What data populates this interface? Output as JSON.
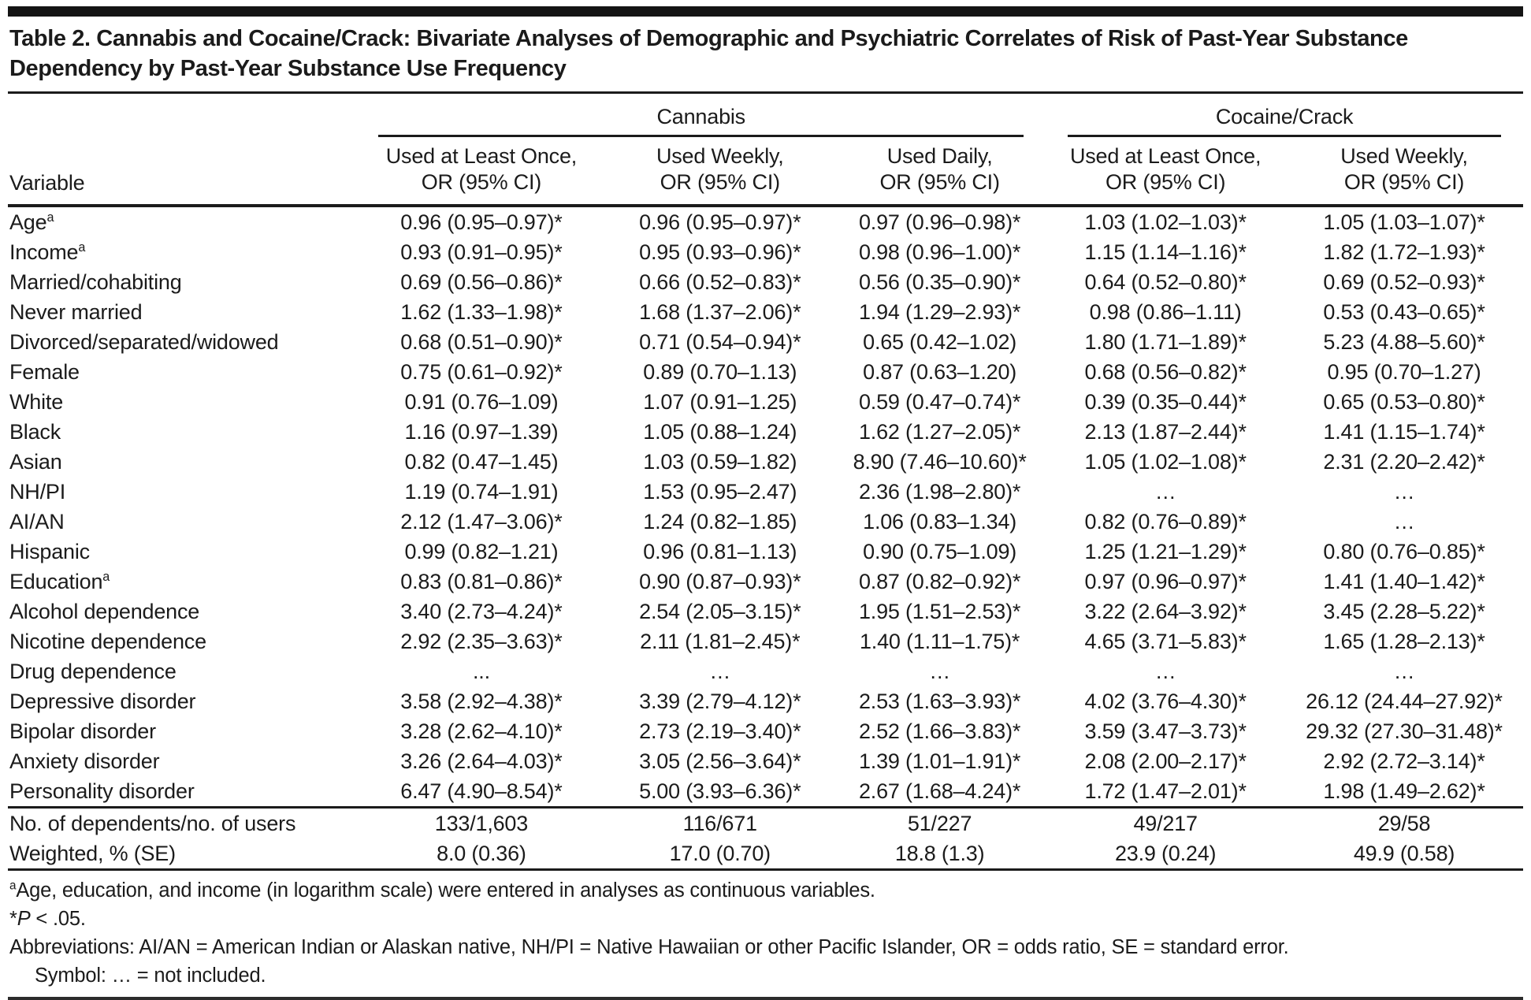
{
  "title": "Table 2. Cannabis and Cocaine/Crack: Bivariate Analyses of Demographic and Psychiatric Correlates of Risk of Past-Year Substance Dependency by Past-Year Substance Use Frequency",
  "table": {
    "group_headers": [
      {
        "label": "Cannabis",
        "span": 3
      },
      {
        "label": "Cocaine/Crack",
        "span": 2
      }
    ],
    "columns": [
      {
        "label": "Variable"
      },
      {
        "line1": "Used at Least Once,",
        "line2": "OR (95% CI)"
      },
      {
        "line1": "Used Weekly,",
        "line2": "OR (95% CI)"
      },
      {
        "line1": "Used Daily,",
        "line2": "OR (95% CI)"
      },
      {
        "line1": "Used at Least Once,",
        "line2": "OR (95% CI)"
      },
      {
        "line1": "Used Weekly,",
        "line2": "OR (95% CI)"
      }
    ],
    "rows": [
      {
        "variable": "Age",
        "sup": "a",
        "values": [
          "0.96 (0.95–0.97)*",
          "0.96 (0.95–0.97)*",
          "0.97 (0.96–0.98)*",
          "1.03 (1.02–1.03)*",
          "1.05 (1.03–1.07)*"
        ]
      },
      {
        "variable": "Income",
        "sup": "a",
        "values": [
          "0.93 (0.91–0.95)*",
          "0.95 (0.93–0.96)*",
          "0.98 (0.96–1.00)*",
          "1.15 (1.14–1.16)*",
          "1.82 (1.72–1.93)*"
        ]
      },
      {
        "variable": "Married/cohabiting",
        "values": [
          "0.69 (0.56–0.86)*",
          "0.66 (0.52–0.83)*",
          "0.56 (0.35–0.90)*",
          "0.64 (0.52–0.80)*",
          "0.69 (0.52–0.93)*"
        ]
      },
      {
        "variable": "Never married",
        "values": [
          "1.62 (1.33–1.98)*",
          "1.68 (1.37–2.06)*",
          "1.94 (1.29–2.93)*",
          "0.98 (0.86–1.11)",
          "0.53 (0.43–0.65)*"
        ]
      },
      {
        "variable": "Divorced/separated/widowed",
        "values": [
          "0.68 (0.51–0.90)*",
          "0.71 (0.54–0.94)*",
          "0.65 (0.42–1.02)",
          "1.80 (1.71–1.89)*",
          "5.23 (4.88–5.60)*"
        ]
      },
      {
        "variable": "Female",
        "values": [
          "0.75 (0.61–0.92)*",
          "0.89 (0.70–1.13)",
          "0.87 (0.63–1.20)",
          "0.68 (0.56–0.82)*",
          "0.95 (0.70–1.27)"
        ]
      },
      {
        "variable": "White",
        "values": [
          "0.91 (0.76–1.09)",
          "1.07 (0.91–1.25)",
          "0.59 (0.47–0.74)*",
          "0.39 (0.35–0.44)*",
          "0.65 (0.53–0.80)*"
        ]
      },
      {
        "variable": "Black",
        "values": [
          "1.16 (0.97–1.39)",
          "1.05 (0.88–1.24)",
          "1.62 (1.27–2.05)*",
          "2.13 (1.87–2.44)*",
          "1.41 (1.15–1.74)*"
        ]
      },
      {
        "variable": "Asian",
        "values": [
          "0.82 (0.47–1.45)",
          "1.03 (0.59–1.82)",
          "8.90 (7.46–10.60)*",
          "1.05 (1.02–1.08)*",
          "2.31 (2.20–2.42)*"
        ]
      },
      {
        "variable": "NH/PI",
        "values": [
          "1.19 (0.74–1.91)",
          "1.53 (0.95–2.47)",
          "2.36 (1.98–2.80)*",
          "…",
          "…"
        ]
      },
      {
        "variable": "AI/AN",
        "values": [
          "2.12 (1.47–3.06)*",
          "1.24 (0.82–1.85)",
          "1.06 (0.83–1.34)",
          "0.82 (0.76–0.89)*",
          "…"
        ]
      },
      {
        "variable": "Hispanic",
        "values": [
          "0.99 (0.82–1.21)",
          "0.96 (0.81–1.13)",
          "0.90 (0.75–1.09)",
          "1.25 (1.21–1.29)*",
          "0.80 (0.76–0.85)*"
        ]
      },
      {
        "variable": "Education",
        "sup": "a",
        "values": [
          "0.83 (0.81–0.86)*",
          "0.90 (0.87–0.93)*",
          "0.87 (0.82–0.92)*",
          "0.97 (0.96–0.97)*",
          "1.41 (1.40–1.42)*"
        ]
      },
      {
        "variable": "Alcohol dependence",
        "values": [
          "3.40 (2.73–4.24)*",
          "2.54 (2.05–3.15)*",
          "1.95 (1.51–2.53)*",
          "3.22 (2.64–3.92)*",
          "3.45 (2.28–5.22)*"
        ]
      },
      {
        "variable": "Nicotine dependence",
        "values": [
          "2.92 (2.35–3.63)*",
          "2.11 (1.81–2.45)*",
          "1.40 (1.11–1.75)*",
          "4.65 (3.71–5.83)*",
          "1.65 (1.28–2.13)*"
        ]
      },
      {
        "variable": "Drug dependence",
        "values": [
          "...",
          "…",
          "…",
          "…",
          "…"
        ]
      },
      {
        "variable": "Depressive disorder",
        "values": [
          "3.58 (2.92–4.38)*",
          "3.39 (2.79–4.12)*",
          "2.53 (1.63–3.93)*",
          "4.02 (3.76–4.30)*",
          "26.12 (24.44–27.92)*"
        ]
      },
      {
        "variable": "Bipolar disorder",
        "values": [
          "3.28 (2.62–4.10)*",
          "2.73 (2.19–3.40)*",
          "2.52 (1.66–3.83)*",
          "3.59 (3.47–3.73)*",
          "29.32 (27.30–31.48)*"
        ]
      },
      {
        "variable": "Anxiety disorder",
        "values": [
          "3.26 (2.64–4.03)*",
          "3.05 (2.56–3.64)*",
          "1.39 (1.01–1.91)*",
          "2.08 (2.00–2.17)*",
          "2.92 (2.72–3.14)*"
        ]
      },
      {
        "variable": "Personality disorder",
        "values": [
          "6.47 (4.90–8.54)*",
          "5.00 (3.93–6.36)*",
          "2.67 (1.68–4.24)*",
          "1.72 (1.47–2.01)*",
          "1.98 (1.49–2.62)*"
        ]
      }
    ],
    "summary_rows": [
      {
        "variable": "No. of dependents/no. of users",
        "values": [
          "133/1,603",
          "116/671",
          "51/227",
          "49/217",
          "29/58"
        ]
      },
      {
        "variable": "Weighted, % (SE)",
        "values": [
          "8.0 (0.36)",
          "17.0 (0.70)",
          "18.8 (1.3)",
          "23.9 (0.24)",
          "49.9 (0.58)"
        ]
      }
    ]
  },
  "footnotes": {
    "a_sup": "a",
    "a_text": "Age, education, and income (in logarithm scale) were entered in analyses as continuous variables.",
    "p_pre": "*",
    "p_italic": "P",
    "p_post": " < .05.",
    "abbreviations": "Abbreviations: AI/AN = American Indian or Alaskan native, NH/PI = Native Hawaiian or other Pacific Islander, OR = odds ratio, SE = standard error.",
    "symbol": "Symbol: … = not included."
  }
}
